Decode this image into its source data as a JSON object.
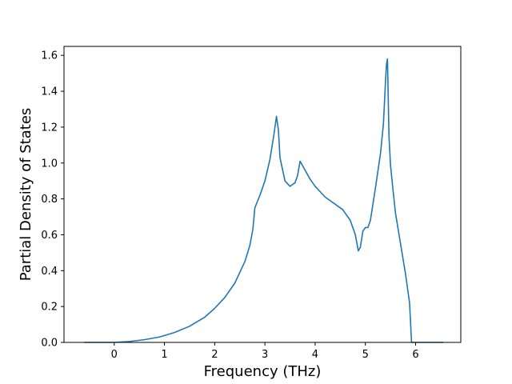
{
  "chart_data": {
    "type": "line",
    "title": "",
    "xlabel": "Frequency (THz)",
    "ylabel": "Partial Density of States",
    "xlim": [
      -1.0,
      6.9
    ],
    "ylim": [
      0.0,
      1.65
    ],
    "xticks": [
      0,
      1,
      2,
      3,
      4,
      5,
      6
    ],
    "yticks": [
      0.0,
      0.2,
      0.4,
      0.6,
      0.8,
      1.0,
      1.2,
      1.4,
      1.6
    ],
    "xtick_labels": [
      "0",
      "1",
      "2",
      "3",
      "4",
      "5",
      "6"
    ],
    "ytick_labels": [
      "0.0",
      "0.2",
      "0.4",
      "0.6",
      "0.8",
      "1.0",
      "1.2",
      "1.4",
      "1.6"
    ],
    "grid": false,
    "legend": "none",
    "series": [
      {
        "color": "#1f77b4",
        "x": [
          -0.6,
          -0.3,
          0.0,
          0.3,
          0.6,
          0.9,
          1.2,
          1.5,
          1.8,
          2.0,
          2.2,
          2.4,
          2.6,
          2.7,
          2.76,
          2.8,
          2.9,
          3.0,
          3.1,
          3.18,
          3.23,
          3.27,
          3.3,
          3.4,
          3.5,
          3.6,
          3.65,
          3.7,
          3.8,
          3.9,
          4.0,
          4.1,
          4.2,
          4.3,
          4.4,
          4.5,
          4.55,
          4.6,
          4.7,
          4.8,
          4.86,
          4.9,
          4.95,
          5.0,
          5.05,
          5.1,
          5.2,
          5.3,
          5.36,
          5.4,
          5.42,
          5.44,
          5.47,
          5.5,
          5.55,
          5.6,
          5.7,
          5.8,
          5.88,
          5.92,
          6.0,
          6.2,
          6.4,
          6.55
        ],
        "y": [
          0.0,
          0.0,
          0.0,
          0.005,
          0.015,
          0.03,
          0.055,
          0.09,
          0.14,
          0.19,
          0.25,
          0.33,
          0.45,
          0.54,
          0.63,
          0.75,
          0.82,
          0.9,
          1.02,
          1.16,
          1.26,
          1.18,
          1.03,
          0.9,
          0.87,
          0.89,
          0.93,
          1.01,
          0.96,
          0.91,
          0.87,
          0.84,
          0.81,
          0.79,
          0.77,
          0.75,
          0.74,
          0.72,
          0.68,
          0.6,
          0.51,
          0.53,
          0.62,
          0.64,
          0.64,
          0.68,
          0.86,
          1.05,
          1.22,
          1.45,
          1.55,
          1.58,
          1.15,
          0.99,
          0.85,
          0.72,
          0.55,
          0.38,
          0.22,
          0.0,
          0.0,
          0.0,
          0.0,
          0.0
        ]
      }
    ]
  }
}
